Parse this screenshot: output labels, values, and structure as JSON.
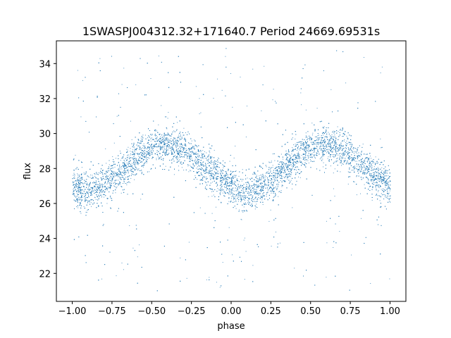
{
  "chart_data": {
    "type": "scatter",
    "title": "1SWASPJ004312.32+171640.7 Period 24669.69531s",
    "xlabel": "phase",
    "ylabel": "flux",
    "xlim": [
      -1.1,
      1.1
    ],
    "ylim": [
      20.4,
      35.3
    ],
    "xticks": [
      -1.0,
      -0.75,
      -0.5,
      -0.25,
      0.0,
      0.25,
      0.5,
      0.75,
      1.0
    ],
    "xtick_labels": [
      "−1.00",
      "−0.75",
      "−0.50",
      "−0.25",
      "0.00",
      "0.25",
      "0.50",
      "0.75",
      "1.00"
    ],
    "yticks": [
      22,
      24,
      26,
      28,
      30,
      32,
      34
    ],
    "ytick_labels": [
      "22",
      "24",
      "26",
      "28",
      "30",
      "32",
      "34"
    ],
    "grid": false,
    "legend": "none",
    "point_color": "#1f77b4",
    "series": [
      {
        "phase": [
          -1.0,
          -0.9,
          -0.8,
          -0.7,
          -0.6,
          -0.5,
          -0.4,
          -0.3,
          -0.2,
          -0.1,
          0.0,
          0.1,
          0.2,
          0.3,
          0.4,
          0.5,
          0.6,
          0.7,
          0.8,
          0.9,
          1.0
        ],
        "flux": [
          27.0,
          26.7,
          27.1,
          27.8,
          28.6,
          29.2,
          29.4,
          29.1,
          28.4,
          27.6,
          26.9,
          26.6,
          27.0,
          27.8,
          28.6,
          29.2,
          29.4,
          29.1,
          28.4,
          27.6,
          27.0
        ]
      }
    ]
  }
}
